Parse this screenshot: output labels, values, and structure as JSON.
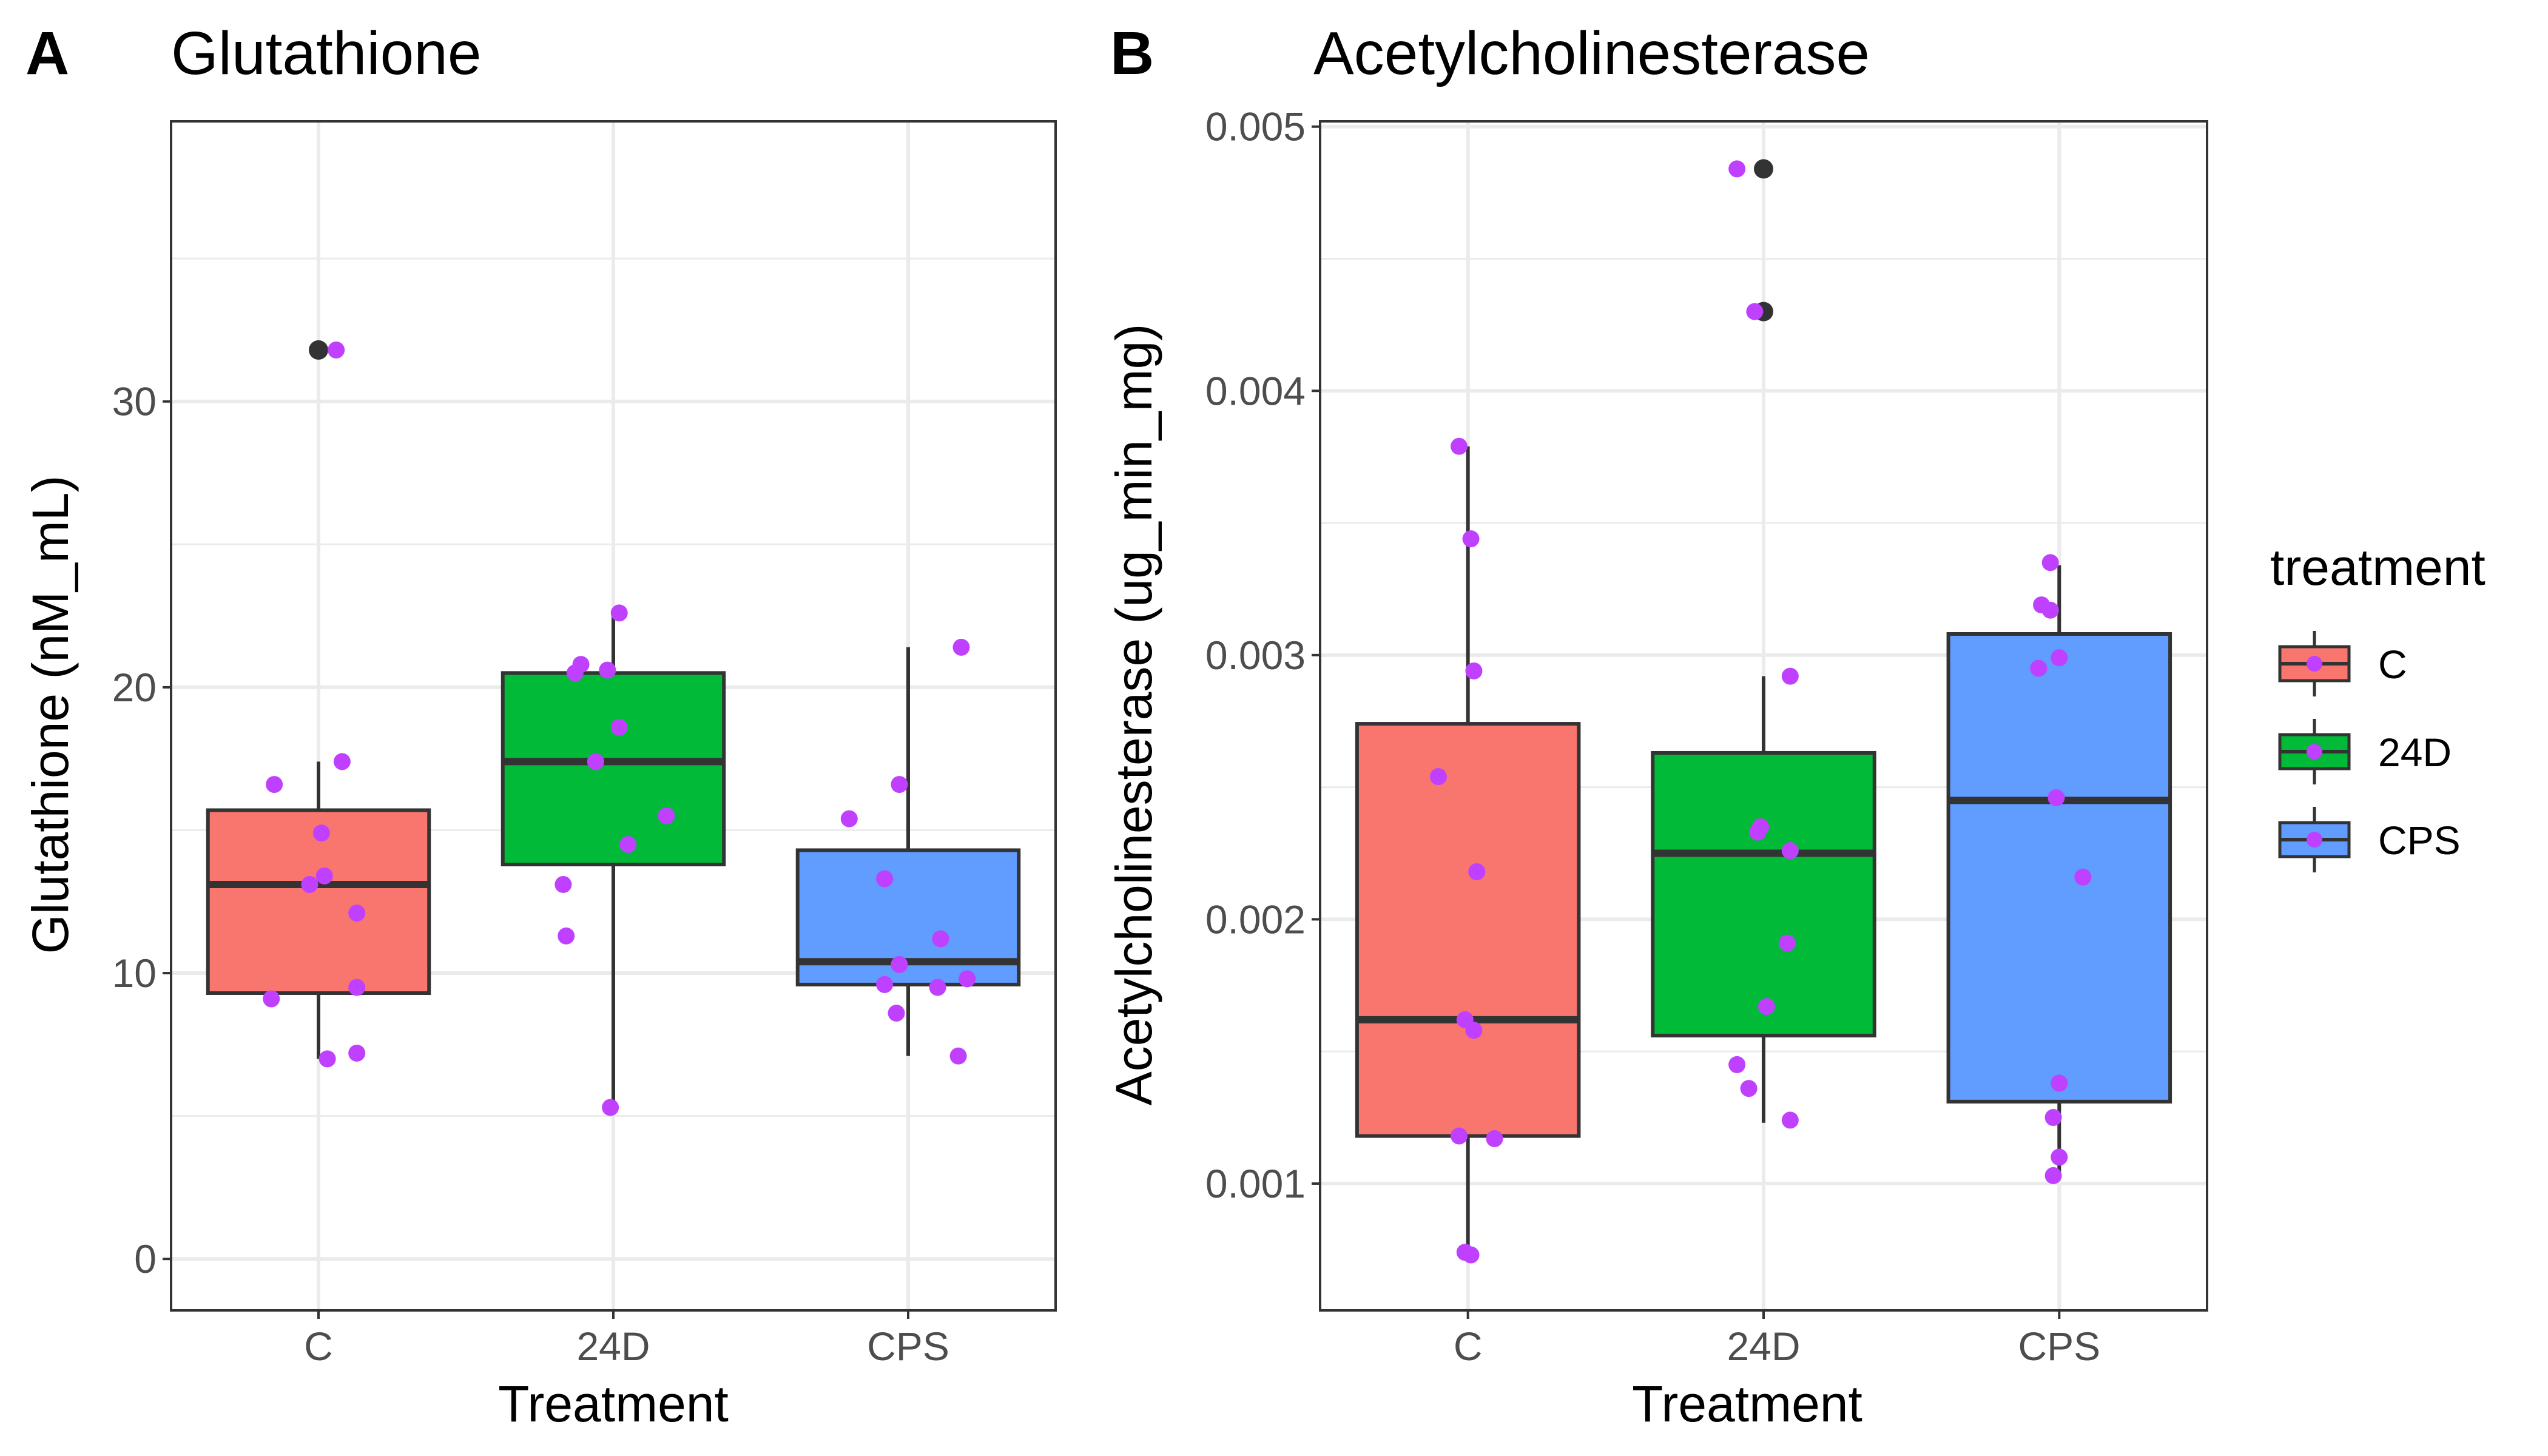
{
  "legend": {
    "title": "treatment",
    "items": [
      {
        "label": "C",
        "color": "#F8766D"
      },
      {
        "label": "24D",
        "color": "#00BA38"
      },
      {
        "label": "CPS",
        "color": "#619CFF"
      }
    ]
  },
  "colors": {
    "jitter_point": "#BF40FF",
    "outlier": "#333333",
    "box_line": "#333333",
    "grid": "#EBEBEB"
  },
  "chart_data": [
    {
      "type": "box",
      "panel_letter": "A",
      "title": "Glutathione",
      "xlabel": "Treatment",
      "ylabel": "Glutathione (nM_mL)",
      "categories": [
        "C",
        "24D",
        "CPS"
      ],
      "ylim": [
        -1.8,
        39.8
      ],
      "yticks": [
        0,
        10,
        20,
        30
      ],
      "ytick_labels": [
        "0",
        "10",
        "20",
        "30"
      ],
      "boxes": [
        {
          "category": "C",
          "min": 7.0,
          "q1": 9.3,
          "median": 13.1,
          "q3": 15.7,
          "max": 17.4,
          "outliers": [
            31.8
          ]
        },
        {
          "category": "24D",
          "min": 5.3,
          "q1": 13.8,
          "median": 17.4,
          "q3": 20.5,
          "max": 22.6,
          "outliers": []
        },
        {
          "category": "CPS",
          "min": 7.1,
          "q1": 9.6,
          "median": 10.4,
          "q3": 14.3,
          "max": 21.4,
          "outliers": []
        }
      ],
      "points": [
        {
          "category": "C",
          "offset": 0.06,
          "y": 31.8
        },
        {
          "category": "C",
          "offset": -0.15,
          "y": 16.6
        },
        {
          "category": "C",
          "offset": 0.08,
          "y": 17.4
        },
        {
          "category": "C",
          "offset": 0.01,
          "y": 14.9
        },
        {
          "category": "C",
          "offset": 0.02,
          "y": 13.4
        },
        {
          "category": "C",
          "offset": -0.03,
          "y": 13.1
        },
        {
          "category": "C",
          "offset": 0.13,
          "y": 12.1
        },
        {
          "category": "C",
          "offset": 0.13,
          "y": 9.5
        },
        {
          "category": "C",
          "offset": -0.16,
          "y": 9.1
        },
        {
          "category": "C",
          "offset": 0.03,
          "y": 7.0
        },
        {
          "category": "C",
          "offset": 0.13,
          "y": 7.2
        },
        {
          "category": "24D",
          "offset": 0.02,
          "y": 22.6
        },
        {
          "category": "24D",
          "offset": -0.13,
          "y": 20.5
        },
        {
          "category": "24D",
          "offset": -0.11,
          "y": 20.8
        },
        {
          "category": "24D",
          "offset": -0.02,
          "y": 20.6
        },
        {
          "category": "24D",
          "offset": 0.02,
          "y": 18.6
        },
        {
          "category": "24D",
          "offset": -0.06,
          "y": 17.4
        },
        {
          "category": "24D",
          "offset": 0.18,
          "y": 15.5
        },
        {
          "category": "24D",
          "offset": 0.05,
          "y": 14.5
        },
        {
          "category": "24D",
          "offset": -0.17,
          "y": 13.1
        },
        {
          "category": "24D",
          "offset": -0.16,
          "y": 11.3
        },
        {
          "category": "24D",
          "offset": -0.01,
          "y": 5.3
        },
        {
          "category": "CPS",
          "offset": 0.18,
          "y": 21.4
        },
        {
          "category": "CPS",
          "offset": -0.2,
          "y": 15.4
        },
        {
          "category": "CPS",
          "offset": -0.03,
          "y": 16.6
        },
        {
          "category": "CPS",
          "offset": -0.08,
          "y": 13.3
        },
        {
          "category": "CPS",
          "offset": 0.11,
          "y": 11.2
        },
        {
          "category": "CPS",
          "offset": -0.03,
          "y": 10.3
        },
        {
          "category": "CPS",
          "offset": -0.08,
          "y": 9.6
        },
        {
          "category": "CPS",
          "offset": 0.1,
          "y": 9.5
        },
        {
          "category": "CPS",
          "offset": 0.2,
          "y": 9.8
        },
        {
          "category": "CPS",
          "offset": -0.04,
          "y": 8.6
        },
        {
          "category": "CPS",
          "offset": 0.17,
          "y": 7.1
        }
      ]
    },
    {
      "type": "box",
      "panel_letter": "B",
      "title": "Acetylcholinesterase",
      "xlabel": "Treatment",
      "ylabel": "Acetylcholinesterase (ug_min_mg)",
      "categories": [
        "C",
        "24D",
        "CPS"
      ],
      "ylim": [
        0.00052,
        0.00502
      ],
      "yticks": [
        0.001,
        0.002,
        0.003,
        0.004,
        0.005
      ],
      "ytick_labels": [
        "0.001",
        "0.002",
        "0.003",
        "0.004",
        "0.005"
      ],
      "boxes": [
        {
          "category": "C",
          "min": 0.00074,
          "q1": 0.00118,
          "median": 0.00162,
          "q3": 0.00274,
          "max": 0.00379,
          "outliers": []
        },
        {
          "category": "24D",
          "min": 0.00123,
          "q1": 0.00156,
          "median": 0.00225,
          "q3": 0.00263,
          "max": 0.00292,
          "outliers": [
            0.00484,
            0.0043
          ]
        },
        {
          "category": "CPS",
          "min": 0.00102,
          "q1": 0.00131,
          "median": 0.00245,
          "q3": 0.00308,
          "max": 0.00334,
          "outliers": []
        }
      ],
      "points": [
        {
          "category": "C",
          "offset": -0.03,
          "y": 0.00379
        },
        {
          "category": "C",
          "offset": 0.01,
          "y": 0.00344
        },
        {
          "category": "C",
          "offset": 0.02,
          "y": 0.00294
        },
        {
          "category": "C",
          "offset": -0.1,
          "y": 0.00254
        },
        {
          "category": "C",
          "offset": 0.03,
          "y": 0.00218
        },
        {
          "category": "C",
          "offset": -0.01,
          "y": 0.00162
        },
        {
          "category": "C",
          "offset": 0.02,
          "y": 0.00158
        },
        {
          "category": "C",
          "offset": -0.03,
          "y": 0.00118
        },
        {
          "category": "C",
          "offset": 0.09,
          "y": 0.00117
        },
        {
          "category": "C",
          "offset": -0.01,
          "y": 0.00074
        },
        {
          "category": "C",
          "offset": 0.01,
          "y": 0.00073
        },
        {
          "category": "24D",
          "offset": -0.09,
          "y": 0.00484
        },
        {
          "category": "24D",
          "offset": -0.03,
          "y": 0.0043
        },
        {
          "category": "24D",
          "offset": 0.09,
          "y": 0.00292
        },
        {
          "category": "24D",
          "offset": -0.01,
          "y": 0.00235
        },
        {
          "category": "24D",
          "offset": -0.02,
          "y": 0.00233
        },
        {
          "category": "24D",
          "offset": 0.09,
          "y": 0.00226
        },
        {
          "category": "24D",
          "offset": 0.08,
          "y": 0.00191
        },
        {
          "category": "24D",
          "offset": 0.01,
          "y": 0.00167
        },
        {
          "category": "24D",
          "offset": -0.09,
          "y": 0.00145
        },
        {
          "category": "24D",
          "offset": -0.05,
          "y": 0.00136
        },
        {
          "category": "24D",
          "offset": 0.09,
          "y": 0.00124
        },
        {
          "category": "CPS",
          "offset": -0.03,
          "y": 0.00335
        },
        {
          "category": "CPS",
          "offset": -0.06,
          "y": 0.00319
        },
        {
          "category": "CPS",
          "offset": -0.03,
          "y": 0.00317
        },
        {
          "category": "CPS",
          "offset": -0.07,
          "y": 0.00295
        },
        {
          "category": "CPS",
          "offset": 0.0,
          "y": 0.00299
        },
        {
          "category": "CPS",
          "offset": -0.01,
          "y": 0.00246
        },
        {
          "category": "CPS",
          "offset": 0.08,
          "y": 0.00216
        },
        {
          "category": "CPS",
          "offset": 0.0,
          "y": 0.00138
        },
        {
          "category": "CPS",
          "offset": -0.02,
          "y": 0.00125
        },
        {
          "category": "CPS",
          "offset": -0.02,
          "y": 0.00103
        },
        {
          "category": "CPS",
          "offset": 0.0,
          "y": 0.0011
        }
      ]
    }
  ]
}
